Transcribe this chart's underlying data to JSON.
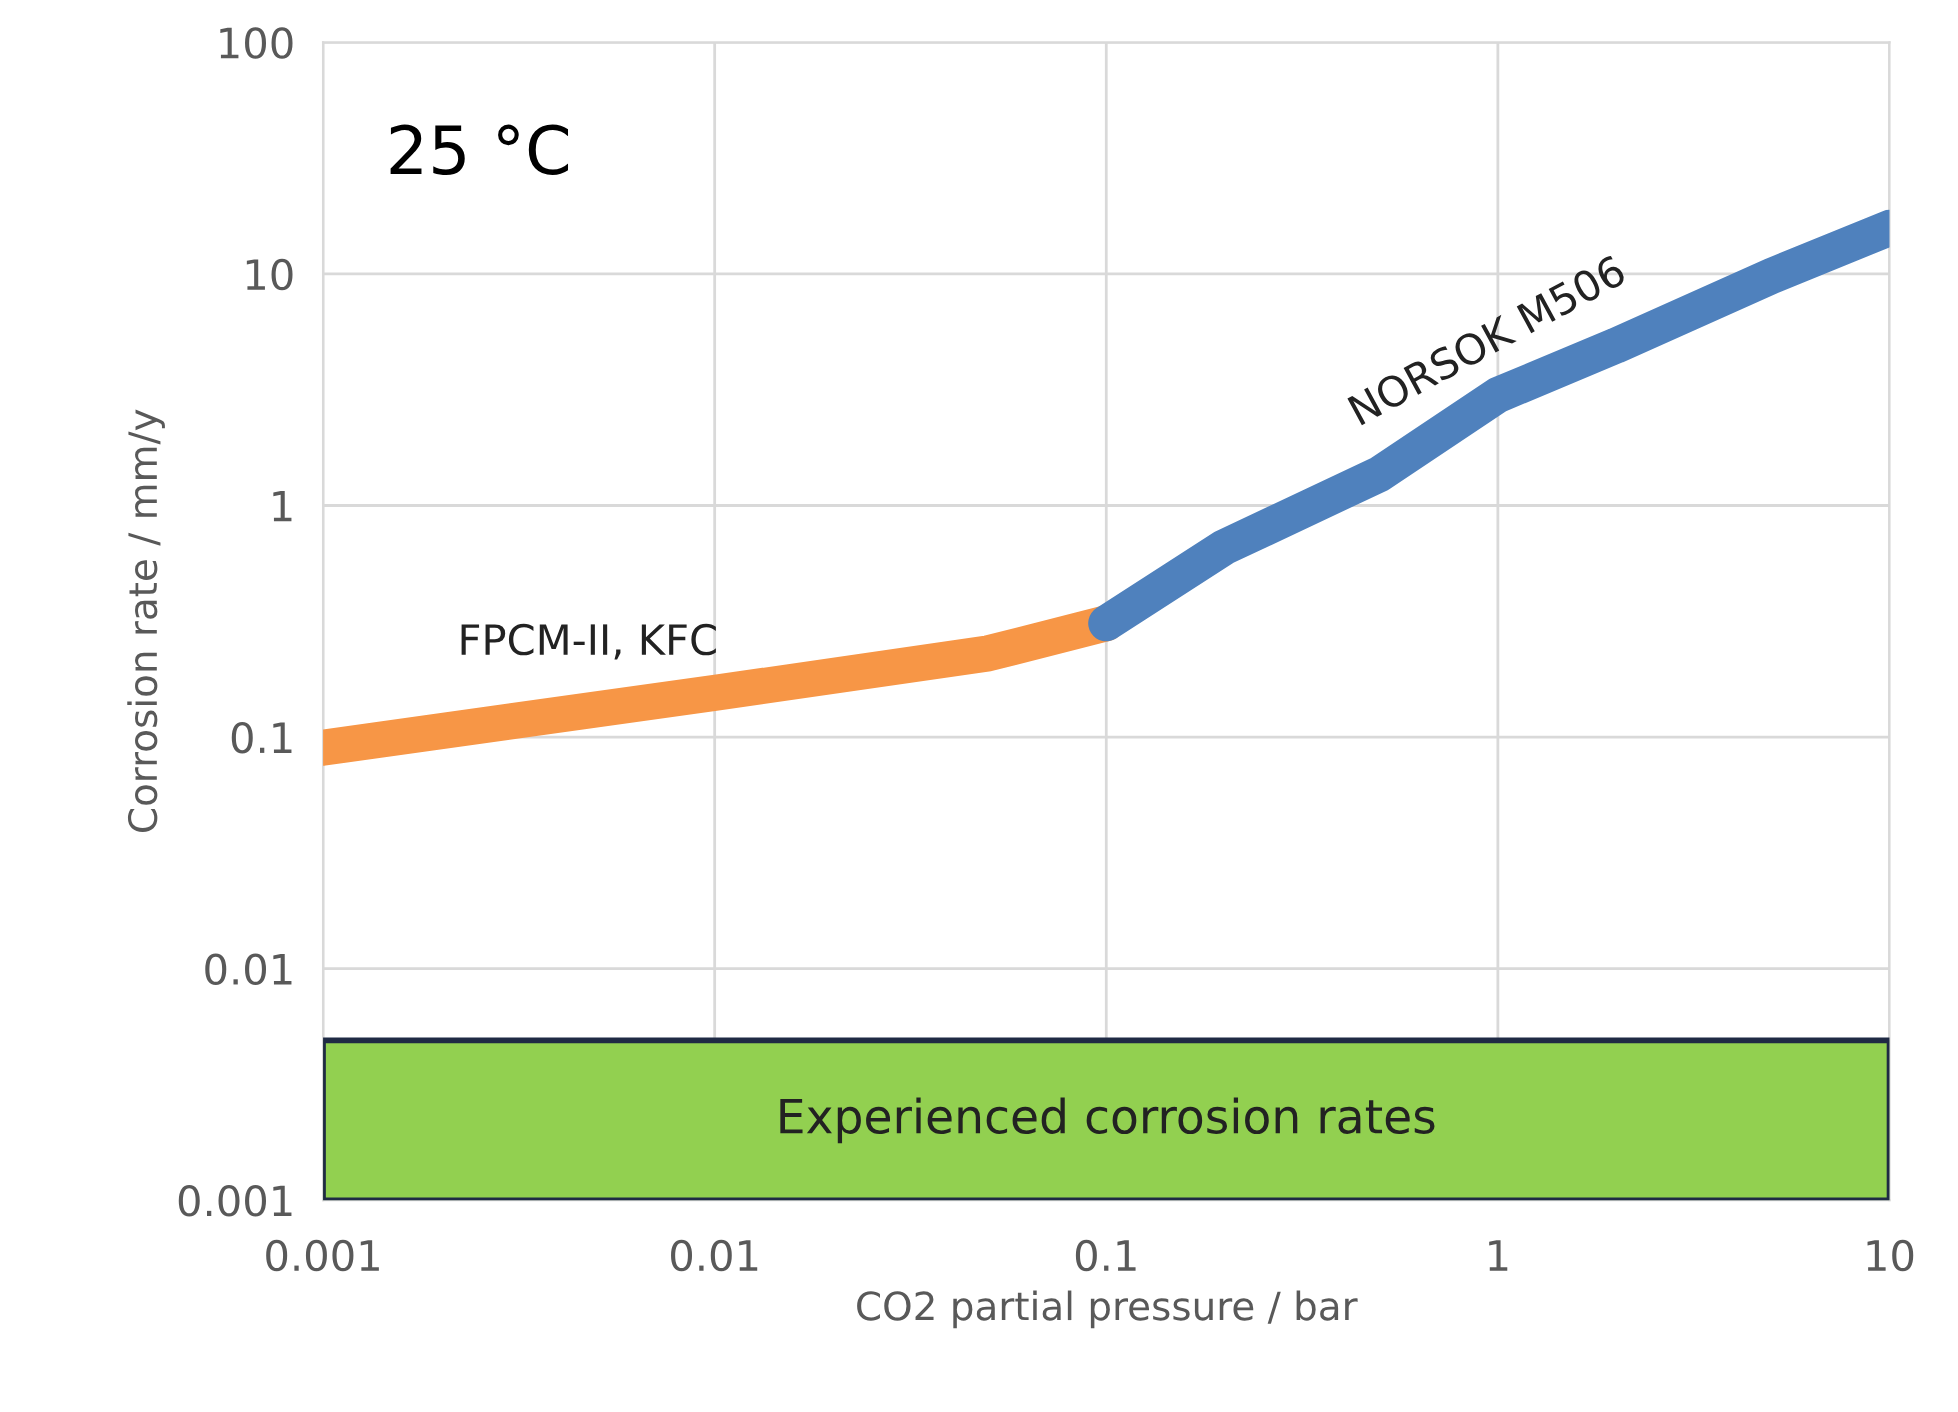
{
  "chart_data": {
    "type": "line",
    "xlabel": "CO2 partial pressure / bar",
    "ylabel": "Corrosion rate / mm/y",
    "log": "xy",
    "xlim": [
      0.001,
      10
    ],
    "ylim": [
      0.001,
      100
    ],
    "xticks": [
      0.001,
      0.01,
      0.1,
      1,
      10
    ],
    "yticks": [
      0.001,
      0.01,
      0.1,
      1,
      10,
      100
    ],
    "grid": true,
    "line_style": "solid",
    "series": [
      {
        "name": "FPCM-II, KFC",
        "color": "#f79646",
        "x": [
          0.001,
          0.01,
          0.05,
          0.1
        ],
        "values": [
          0.09,
          0.155,
          0.23,
          0.31
        ]
      },
      {
        "name": "NORSOK M506",
        "color": "#4f81bd",
        "x": [
          0.1,
          0.2,
          0.5,
          1,
          2,
          5,
          10
        ],
        "values": [
          0.31,
          0.66,
          1.37,
          3.0,
          4.9,
          9.8,
          15.8
        ]
      }
    ],
    "bands": [
      {
        "axis": "y",
        "from": 0.001,
        "to": 0.0049,
        "label": "Experienced corrosion rates",
        "color": "#92d050"
      }
    ],
    "annotations": [
      "25 °C"
    ]
  }
}
